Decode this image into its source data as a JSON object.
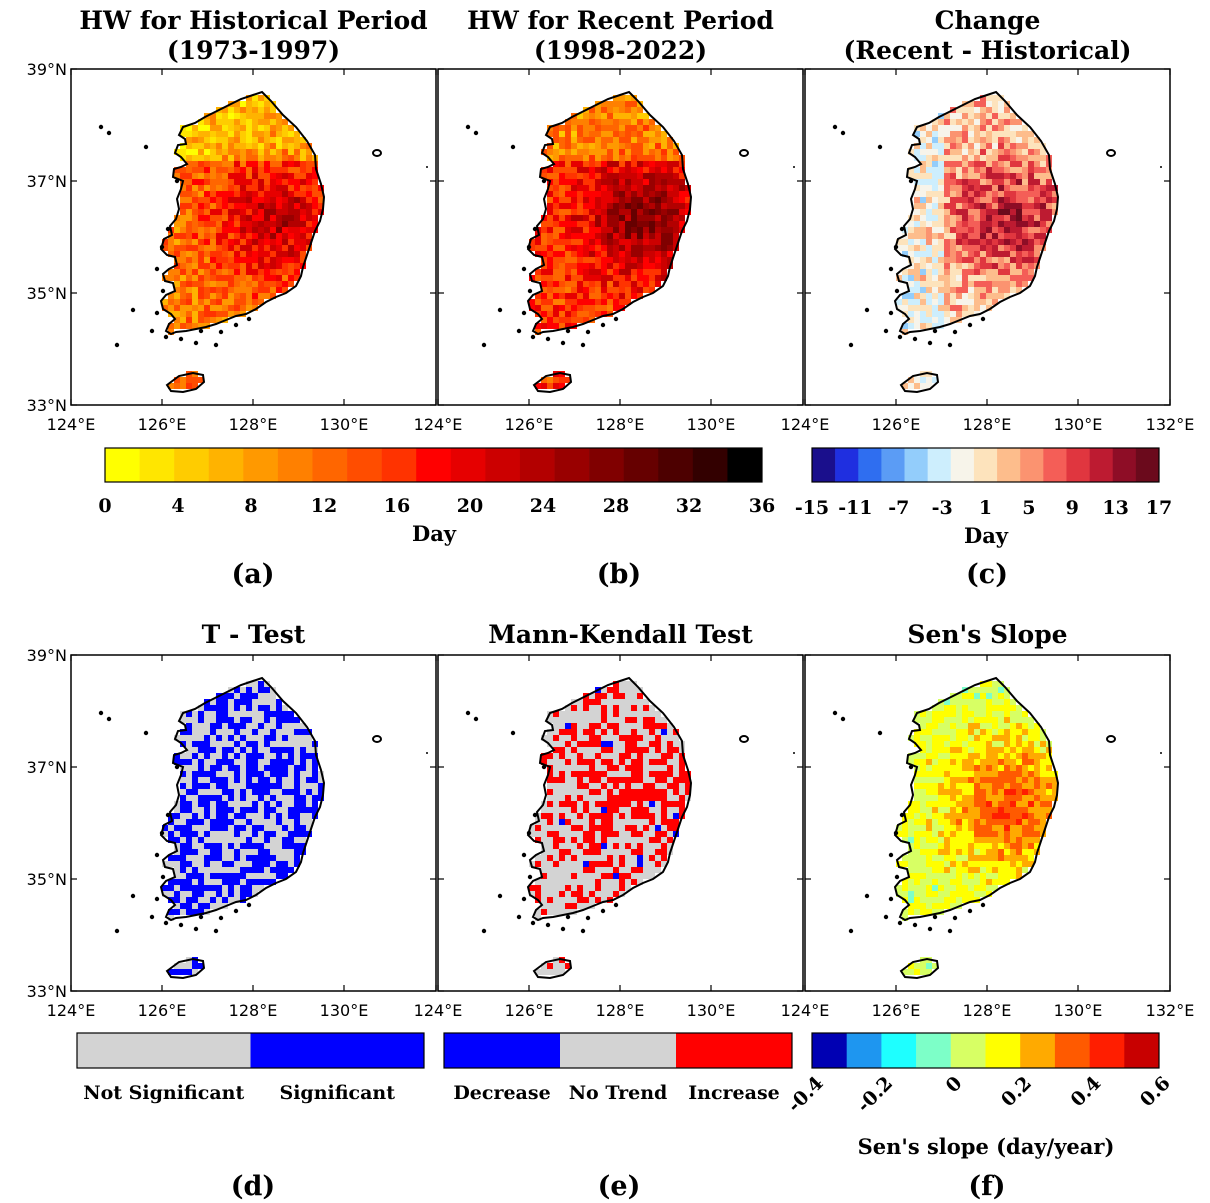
{
  "panels": [
    {
      "id": "a",
      "title": [
        "HW for Historical Period",
        "(1973-1997)"
      ],
      "label": "(a)",
      "show_lat": true,
      "show_132": false
    },
    {
      "id": "b",
      "title": [
        "HW for Recent Period",
        "(1998-2022)"
      ],
      "label": "(b)",
      "show_lat": false,
      "show_132": false
    },
    {
      "id": "c",
      "title": [
        "Change",
        "(Recent - Historical)"
      ],
      "label": "(c)",
      "show_lat": false,
      "show_132": true
    },
    {
      "id": "d",
      "title": [
        "T - Test"
      ],
      "label": "(d)",
      "show_lat": true,
      "show_132": false
    },
    {
      "id": "e",
      "title": [
        "Mann-Kendall Test"
      ],
      "label": "(e)",
      "show_lat": false,
      "show_132": false
    },
    {
      "id": "f",
      "title": [
        "Sen's Slope"
      ],
      "label": "(f)",
      "show_lat": false,
      "show_132": true
    }
  ],
  "lat_ticks": [
    "39°N",
    "37°N",
    "35°N",
    "33°N"
  ],
  "lon_ticks": [
    "124°E",
    "126°E",
    "128°E",
    "130°E",
    "132°E"
  ],
  "colorbars": {
    "ab": {
      "ticks": [
        "0",
        "4",
        "8",
        "12",
        "16",
        "20",
        "24",
        "28",
        "32",
        "36"
      ],
      "title": "Day",
      "colors": [
        "#ffff00",
        "#ffe600",
        "#ffcc00",
        "#ffb300",
        "#ff9900",
        "#ff8000",
        "#ff6600",
        "#ff4d00",
        "#ff3300",
        "#ff0000",
        "#e60000",
        "#cc0000",
        "#b30000",
        "#990000",
        "#800000",
        "#660000",
        "#4d0000",
        "#330000",
        "#000000"
      ]
    },
    "c": {
      "ticks": [
        "-15",
        "-11",
        "-7",
        "-3",
        "1",
        "5",
        "9",
        "13",
        "17"
      ],
      "title": "Day",
      "colors": [
        "#1a0f8c",
        "#1f2fe0",
        "#2f6ef0",
        "#5b9cf5",
        "#93cdfb",
        "#cdeefd",
        "#f7f4ea",
        "#fde3bc",
        "#fdbd8c",
        "#fb9370",
        "#f45e57",
        "#e0363f",
        "#bd1b31",
        "#8e0d26",
        "#6b0a1c"
      ]
    },
    "d": {
      "labels": [
        "Not Significant",
        "Significant"
      ],
      "colors": [
        "#d3d3d3",
        "#0000ff"
      ]
    },
    "e": {
      "labels": [
        "Decrease",
        "No Trend",
        "Increase"
      ],
      "colors": [
        "#0000ff",
        "#d3d3d3",
        "#ff0000"
      ]
    },
    "f": {
      "ticks": [
        "-0.4",
        "-0.2",
        "0",
        "0.2",
        "0.4",
        "0.6"
      ],
      "title": "Sen's slope (day/year)",
      "colors": [
        "#0000b3",
        "#1e96f0",
        "#1effff",
        "#7dffc8",
        "#d7ff64",
        "#ffff00",
        "#ffaa00",
        "#ff5a00",
        "#ff1e00",
        "#c80000"
      ]
    }
  }
}
